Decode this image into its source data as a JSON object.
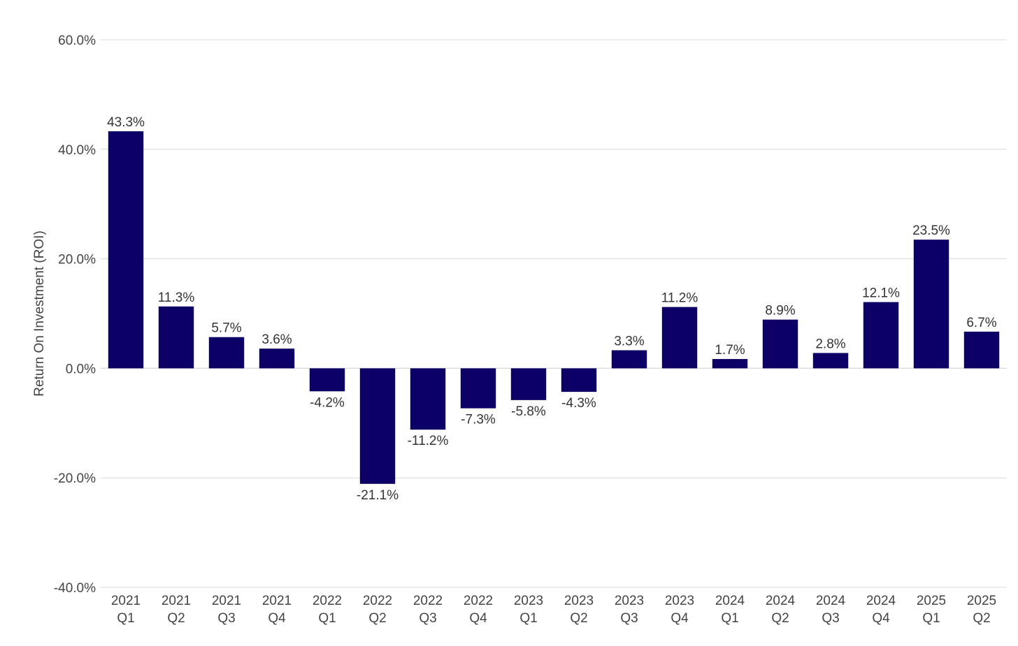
{
  "chart_data": {
    "type": "bar",
    "title": "",
    "xlabel": "",
    "ylabel": "Return On Investment (ROI)",
    "ylim": [
      -40,
      60
    ],
    "yticks": [
      -40,
      -20,
      0,
      20,
      40,
      60
    ],
    "ytick_labels": [
      "-40.0%",
      "-20.0%",
      "0.0%",
      "20.0%",
      "40.0%",
      "60.0%"
    ],
    "grid": true,
    "legend": "none",
    "bar_color": "#0c0066",
    "categories": [
      [
        "2021",
        "Q1"
      ],
      [
        "2021",
        "Q2"
      ],
      [
        "2021",
        "Q3"
      ],
      [
        "2021",
        "Q4"
      ],
      [
        "2022",
        "Q1"
      ],
      [
        "2022",
        "Q2"
      ],
      [
        "2022",
        "Q3"
      ],
      [
        "2022",
        "Q4"
      ],
      [
        "2023",
        "Q1"
      ],
      [
        "2023",
        "Q2"
      ],
      [
        "2023",
        "Q3"
      ],
      [
        "2023",
        "Q4"
      ],
      [
        "2024",
        "Q1"
      ],
      [
        "2024",
        "Q2"
      ],
      [
        "2024",
        "Q3"
      ],
      [
        "2024",
        "Q4"
      ],
      [
        "2025",
        "Q1"
      ],
      [
        "2025",
        "Q2"
      ]
    ],
    "values": [
      43.3,
      11.3,
      5.7,
      3.6,
      -4.2,
      -21.1,
      -11.2,
      -7.3,
      -5.8,
      -4.3,
      3.3,
      11.2,
      1.7,
      8.9,
      2.8,
      12.1,
      23.5,
      6.7
    ],
    "value_labels": [
      "43.3%",
      "11.3%",
      "5.7%",
      "3.6%",
      "-4.2%",
      "-21.1%",
      "-11.2%",
      "-7.3%",
      "-5.8%",
      "-4.3%",
      "3.3%",
      "11.2%",
      "1.7%",
      "8.9%",
      "2.8%",
      "12.1%",
      "23.5%",
      "6.7%"
    ]
  }
}
